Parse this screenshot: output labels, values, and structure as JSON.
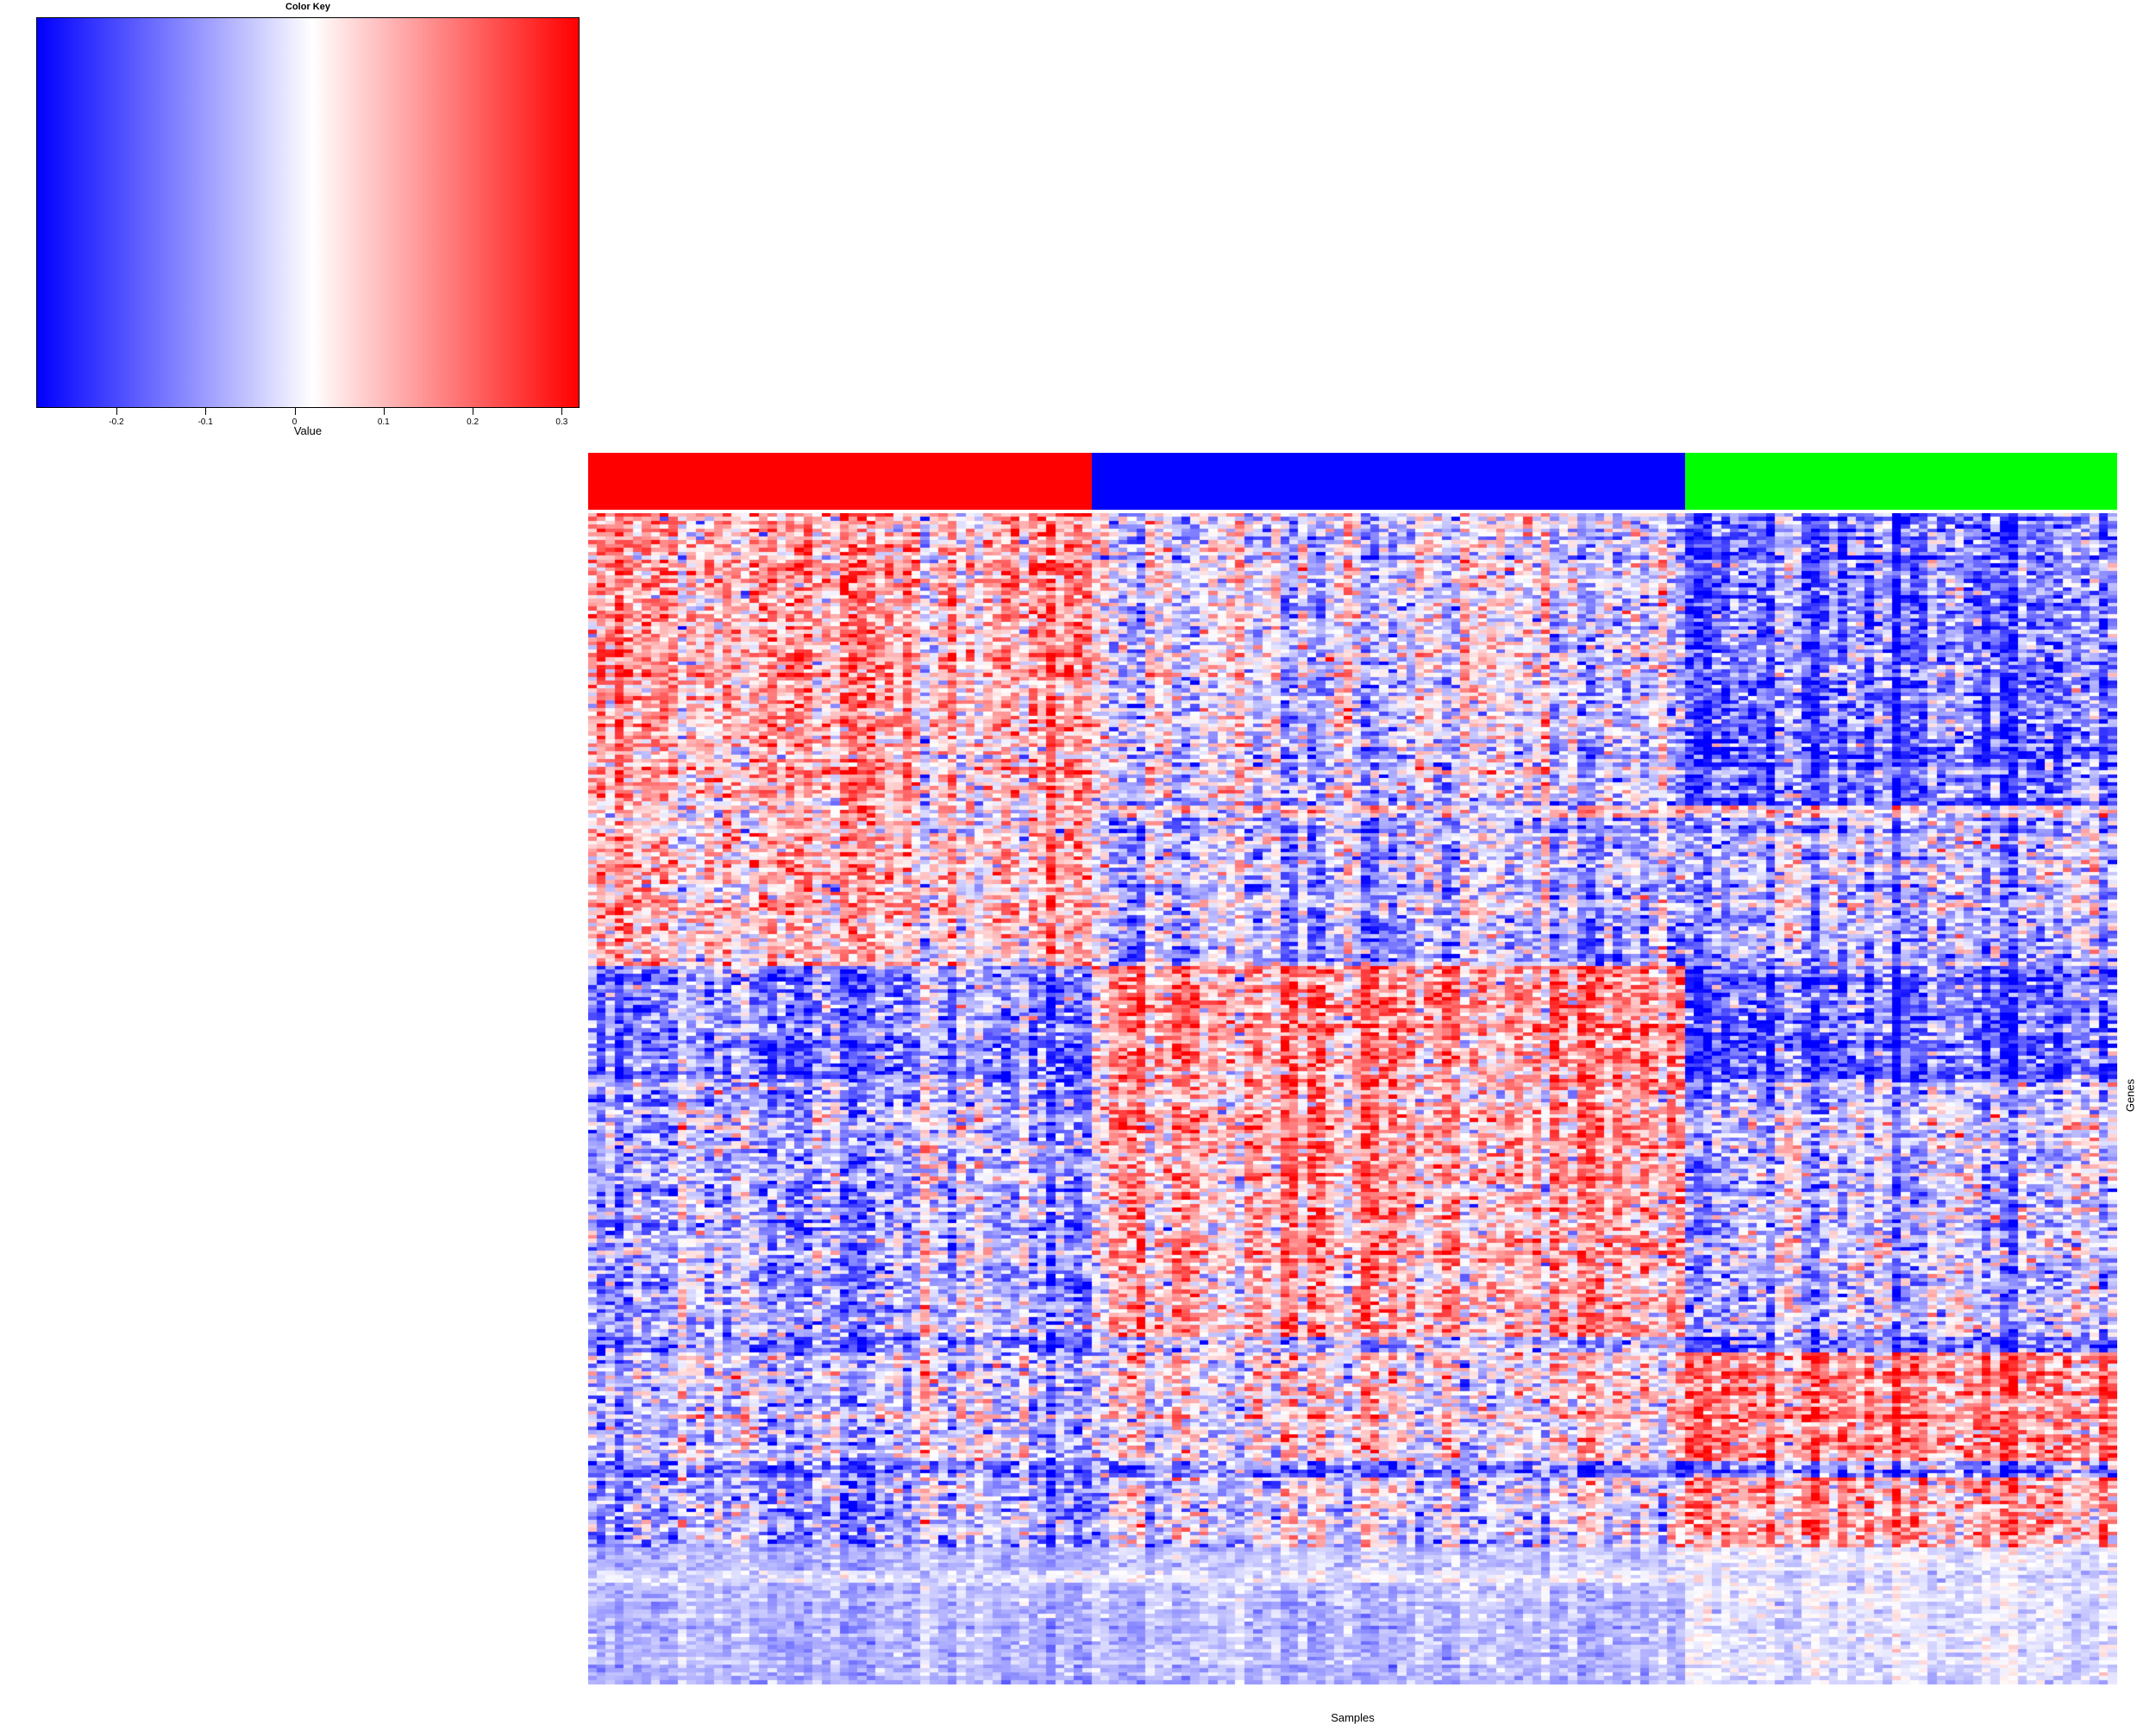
{
  "chart_data": {
    "type": "heatmap",
    "title": "",
    "xlabel": "Samples",
    "ylabel": "Genes",
    "color_key": {
      "title": "Color Key",
      "xlabel": "Value",
      "range": [
        -0.29,
        0.32
      ],
      "colors": [
        "#0000ff",
        "#ffffff",
        "#ff0000"
      ],
      "midpoint": 0.02,
      "ticks": [
        -0.2,
        -0.1,
        0,
        0.1,
        0.2,
        0.3
      ],
      "tick_labels": [
        "-0.2",
        "-0.1",
        "0",
        "0.1",
        "0.2",
        "0.3"
      ]
    },
    "n_rows": 300,
    "n_cols": 170,
    "column_groups": [
      {
        "color": "#ff0000",
        "count": 56
      },
      {
        "color": "#0000ff",
        "count": 66
      },
      {
        "color": "#00ff00",
        "count": 48
      }
    ],
    "row_blocks": [
      {
        "rows": 75,
        "group_means": [
          0.12,
          -0.02,
          -0.14
        ]
      },
      {
        "rows": 3,
        "group_means": [
          0.05,
          0.02,
          0.0
        ]
      },
      {
        "rows": 38,
        "group_means": [
          0.09,
          -0.06,
          -0.05
        ]
      },
      {
        "rows": 30,
        "group_means": [
          -0.14,
          0.13,
          -0.17
        ]
      },
      {
        "rows": 65,
        "group_means": [
          -0.09,
          0.1,
          -0.05
        ]
      },
      {
        "rows": 4,
        "group_means": [
          -0.15,
          -0.06,
          -0.15
        ]
      },
      {
        "rows": 28,
        "group_means": [
          -0.05,
          0.03,
          0.14
        ]
      },
      {
        "rows": 4,
        "group_means": [
          -0.16,
          -0.14,
          -0.12
        ]
      },
      {
        "rows": 24,
        "group_means": [
          -0.08,
          0.0,
          0.12
        ]
      },
      {
        "rows": 3,
        "group_means": [
          0.1,
          0.15,
          0.05
        ]
      },
      {
        "rows": 26,
        "group_means": [
          -0.06,
          -0.04,
          0.1
        ]
      }
    ]
  }
}
